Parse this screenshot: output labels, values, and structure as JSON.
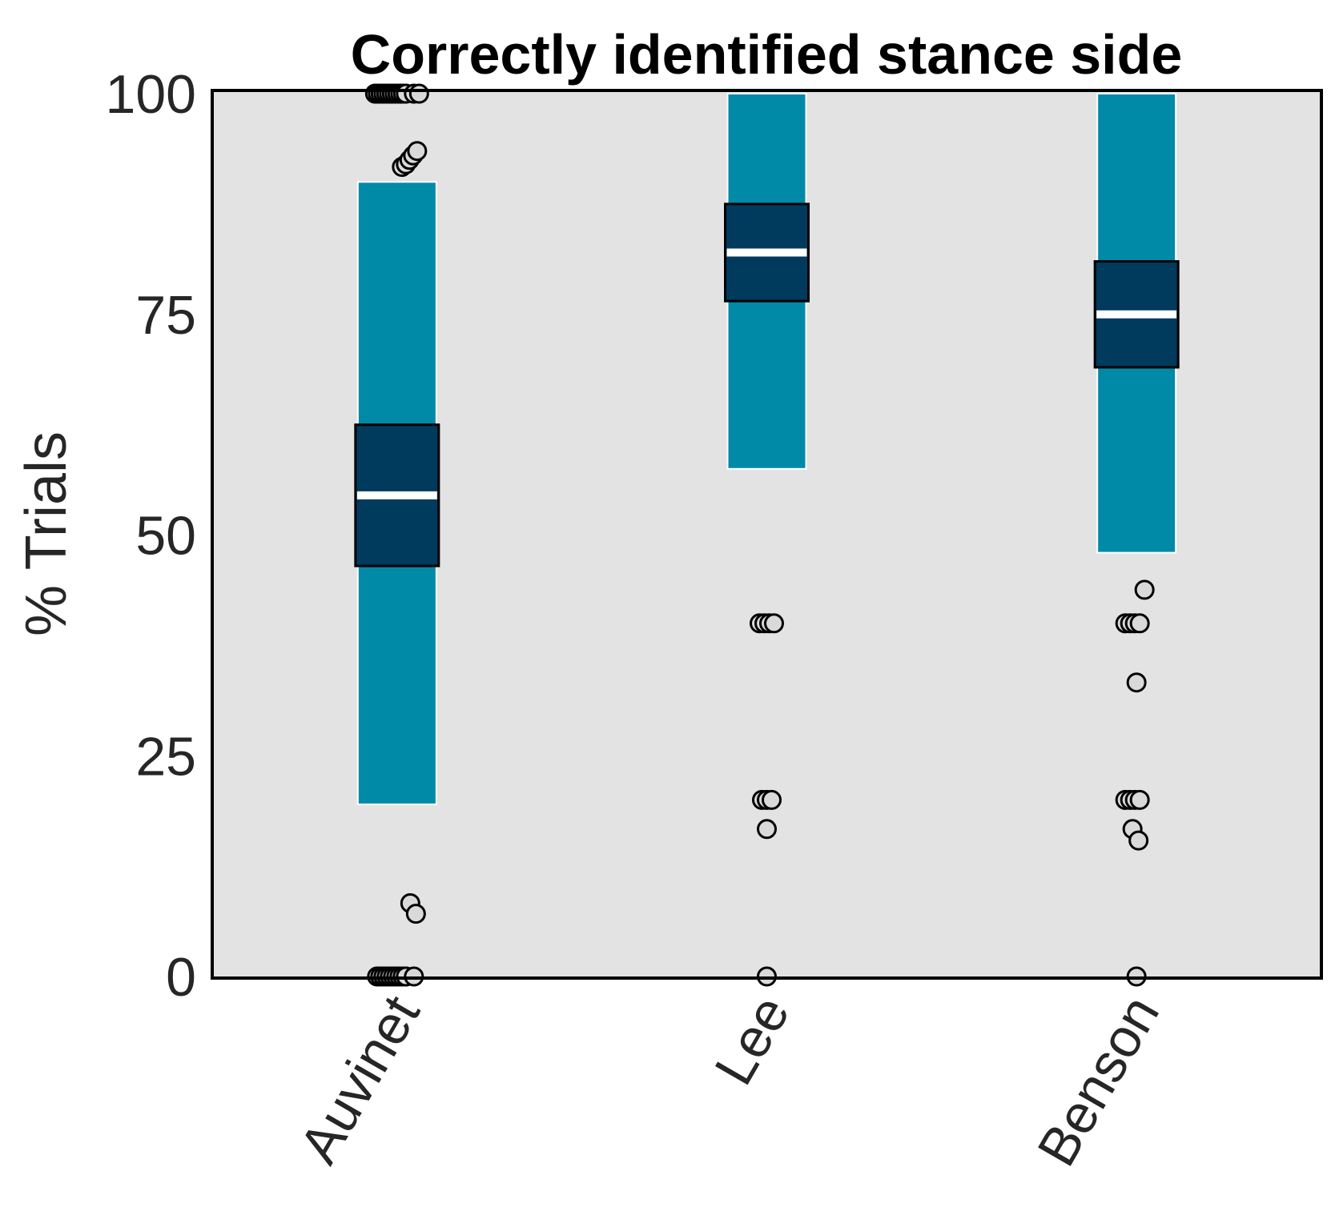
{
  "chart_data": {
    "type": "box",
    "title": "Correctly identified stance side",
    "xlabel": "",
    "ylabel": "% Trials",
    "ylim": [
      0,
      100
    ],
    "yticks": [
      0,
      25,
      50,
      75,
      100
    ],
    "categories": [
      "Auvinet",
      "Lee",
      "Benson"
    ],
    "grid": false,
    "colors": {
      "background": "#e3e3e3",
      "whisker": "#008aa7",
      "box": "#003a5d",
      "median": "#ffffff",
      "outlier_fill": "#d9d9d9",
      "outlier_edge": "#000000"
    },
    "boxes": [
      {
        "name": "Auvinet",
        "whisker_low": 19.5,
        "q1": 46.5,
        "median": 54.5,
        "q3": 62.5,
        "whisker_high": 90,
        "outliers": [
          {
            "x": -0.55,
            "y": 100
          },
          {
            "x": -0.48,
            "y": 100
          },
          {
            "x": -0.41,
            "y": 100
          },
          {
            "x": -0.34,
            "y": 100
          },
          {
            "x": -0.27,
            "y": 100
          },
          {
            "x": -0.2,
            "y": 100
          },
          {
            "x": -0.13,
            "y": 100
          },
          {
            "x": -0.06,
            "y": 100
          },
          {
            "x": 0.01,
            "y": 100
          },
          {
            "x": 0.08,
            "y": 100
          },
          {
            "x": 0.15,
            "y": 100
          },
          {
            "x": 0.22,
            "y": 100
          },
          {
            "x": 0.42,
            "y": 100
          },
          {
            "x": 0.55,
            "y": 100
          },
          {
            "x": 0.12,
            "y": 91.7
          },
          {
            "x": 0.22,
            "y": 92
          },
          {
            "x": 0.31,
            "y": 92.5
          },
          {
            "x": 0.4,
            "y": 93
          },
          {
            "x": 0.5,
            "y": 93.5
          },
          {
            "x": 0.33,
            "y": 8.3
          },
          {
            "x": 0.47,
            "y": 7.1
          },
          {
            "x": -0.5,
            "y": 0
          },
          {
            "x": -0.42,
            "y": 0
          },
          {
            "x": -0.34,
            "y": 0
          },
          {
            "x": -0.26,
            "y": 0
          },
          {
            "x": -0.18,
            "y": 0
          },
          {
            "x": -0.1,
            "y": 0
          },
          {
            "x": -0.02,
            "y": 0
          },
          {
            "x": 0.06,
            "y": 0
          },
          {
            "x": 0.14,
            "y": 0
          },
          {
            "x": 0.22,
            "y": 0
          },
          {
            "x": 0.42,
            "y": 0
          }
        ]
      },
      {
        "name": "Lee",
        "whisker_low": 57.5,
        "q1": 76.5,
        "median": 82,
        "q3": 87.5,
        "whisker_high": 100,
        "outliers": [
          {
            "x": -0.18,
            "y": 40
          },
          {
            "x": -0.06,
            "y": 40
          },
          {
            "x": 0.06,
            "y": 40
          },
          {
            "x": 0.18,
            "y": 40
          },
          {
            "x": -0.12,
            "y": 20
          },
          {
            "x": 0,
            "y": 20
          },
          {
            "x": 0.12,
            "y": 20
          },
          {
            "x": 0,
            "y": 16.7
          },
          {
            "x": 0,
            "y": 0
          }
        ]
      },
      {
        "name": "Benson",
        "whisker_low": 48,
        "q1": 69,
        "median": 75,
        "q3": 81,
        "whisker_high": 100,
        "outliers": [
          {
            "x": 0.2,
            "y": 43.8
          },
          {
            "x": -0.28,
            "y": 40
          },
          {
            "x": -0.16,
            "y": 40
          },
          {
            "x": -0.04,
            "y": 40
          },
          {
            "x": 0.08,
            "y": 40
          },
          {
            "x": 0,
            "y": 33.3
          },
          {
            "x": -0.28,
            "y": 20
          },
          {
            "x": -0.16,
            "y": 20
          },
          {
            "x": -0.04,
            "y": 20
          },
          {
            "x": 0.08,
            "y": 20
          },
          {
            "x": -0.1,
            "y": 16.7
          },
          {
            "x": 0.05,
            "y": 15.4
          },
          {
            "x": 0,
            "y": 0
          }
        ]
      }
    ]
  }
}
